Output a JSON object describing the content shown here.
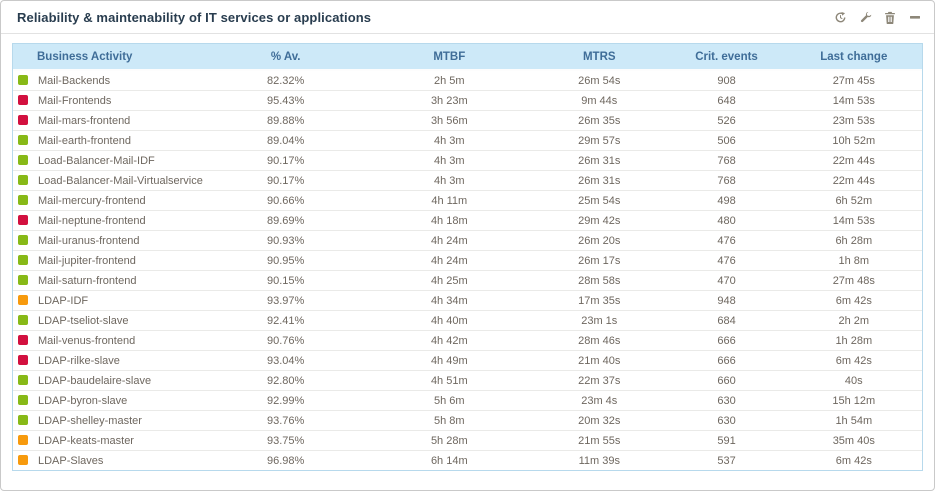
{
  "widget": {
    "title": "Reliability & maintenability of IT services or applications",
    "toolbar_icons": [
      "refresh-icon",
      "wrench-icon",
      "trash-icon",
      "minimize-icon"
    ]
  },
  "status_colors": {
    "ok": "#88b917",
    "warning": "#f79a0d",
    "critical": "#d2103f"
  },
  "header_colors": {
    "header_background": "#cde9f8",
    "header_text": "#3f6d98",
    "table_border": "#b7d9ec"
  },
  "table": {
    "columns": [
      {
        "key": "name",
        "label": "Business Activity"
      },
      {
        "key": "availability",
        "label": "% Av."
      },
      {
        "key": "mtbf",
        "label": "MTBF"
      },
      {
        "key": "mtrs",
        "label": "MTRS"
      },
      {
        "key": "crit_events",
        "label": "Crit. events"
      },
      {
        "key": "last_change",
        "label": "Last change"
      }
    ],
    "rows": [
      {
        "status": "ok",
        "name": "Mail-Backends",
        "availability": "82.32%",
        "mtbf": "2h 5m",
        "mtrs": "26m 54s",
        "crit_events": "908",
        "last_change": "27m 45s"
      },
      {
        "status": "critical",
        "name": "Mail-Frontends",
        "availability": "95.43%",
        "mtbf": "3h 23m",
        "mtrs": "9m 44s",
        "crit_events": "648",
        "last_change": "14m 53s"
      },
      {
        "status": "critical",
        "name": "Mail-mars-frontend",
        "availability": "89.88%",
        "mtbf": "3h 56m",
        "mtrs": "26m 35s",
        "crit_events": "526",
        "last_change": "23m 53s"
      },
      {
        "status": "ok",
        "name": "Mail-earth-frontend",
        "availability": "89.04%",
        "mtbf": "4h 3m",
        "mtrs": "29m 57s",
        "crit_events": "506",
        "last_change": "10h 52m"
      },
      {
        "status": "ok",
        "name": "Load-Balancer-Mail-IDF",
        "availability": "90.17%",
        "mtbf": "4h 3m",
        "mtrs": "26m 31s",
        "crit_events": "768",
        "last_change": "22m 44s"
      },
      {
        "status": "ok",
        "name": "Load-Balancer-Mail-Virtualservice",
        "availability": "90.17%",
        "mtbf": "4h 3m",
        "mtrs": "26m 31s",
        "crit_events": "768",
        "last_change": "22m 44s"
      },
      {
        "status": "ok",
        "name": "Mail-mercury-frontend",
        "availability": "90.66%",
        "mtbf": "4h 11m",
        "mtrs": "25m 54s",
        "crit_events": "498",
        "last_change": "6h 52m"
      },
      {
        "status": "critical",
        "name": "Mail-neptune-frontend",
        "availability": "89.69%",
        "mtbf": "4h 18m",
        "mtrs": "29m 42s",
        "crit_events": "480",
        "last_change": "14m 53s"
      },
      {
        "status": "ok",
        "name": "Mail-uranus-frontend",
        "availability": "90.93%",
        "mtbf": "4h 24m",
        "mtrs": "26m 20s",
        "crit_events": "476",
        "last_change": "6h 28m"
      },
      {
        "status": "ok",
        "name": "Mail-jupiter-frontend",
        "availability": "90.95%",
        "mtbf": "4h 24m",
        "mtrs": "26m 17s",
        "crit_events": "476",
        "last_change": "1h 8m"
      },
      {
        "status": "ok",
        "name": "Mail-saturn-frontend",
        "availability": "90.15%",
        "mtbf": "4h 25m",
        "mtrs": "28m 58s",
        "crit_events": "470",
        "last_change": "27m 48s"
      },
      {
        "status": "warning",
        "name": "LDAP-IDF",
        "availability": "93.97%",
        "mtbf": "4h 34m",
        "mtrs": "17m 35s",
        "crit_events": "948",
        "last_change": "6m 42s"
      },
      {
        "status": "ok",
        "name": "LDAP-tseliot-slave",
        "availability": "92.41%",
        "mtbf": "4h 40m",
        "mtrs": "23m 1s",
        "crit_events": "684",
        "last_change": "2h 2m"
      },
      {
        "status": "critical",
        "name": "Mail-venus-frontend",
        "availability": "90.76%",
        "mtbf": "4h 42m",
        "mtrs": "28m 46s",
        "crit_events": "666",
        "last_change": "1h 28m"
      },
      {
        "status": "critical",
        "name": "LDAP-rilke-slave",
        "availability": "93.04%",
        "mtbf": "4h 49m",
        "mtrs": "21m 40s",
        "crit_events": "666",
        "last_change": "6m 42s"
      },
      {
        "status": "ok",
        "name": "LDAP-baudelaire-slave",
        "availability": "92.80%",
        "mtbf": "4h 51m",
        "mtrs": "22m 37s",
        "crit_events": "660",
        "last_change": "40s"
      },
      {
        "status": "ok",
        "name": "LDAP-byron-slave",
        "availability": "92.99%",
        "mtbf": "5h 6m",
        "mtrs": "23m 4s",
        "crit_events": "630",
        "last_change": "15h 12m"
      },
      {
        "status": "ok",
        "name": "LDAP-shelley-master",
        "availability": "93.76%",
        "mtbf": "5h 8m",
        "mtrs": "20m 32s",
        "crit_events": "630",
        "last_change": "1h 54m"
      },
      {
        "status": "warning",
        "name": "LDAP-keats-master",
        "availability": "93.75%",
        "mtbf": "5h 28m",
        "mtrs": "21m 55s",
        "crit_events": "591",
        "last_change": "35m 40s"
      },
      {
        "status": "warning",
        "name": "LDAP-Slaves",
        "availability": "96.98%",
        "mtbf": "6h 14m",
        "mtrs": "11m 39s",
        "crit_events": "537",
        "last_change": "6m 42s"
      }
    ]
  }
}
